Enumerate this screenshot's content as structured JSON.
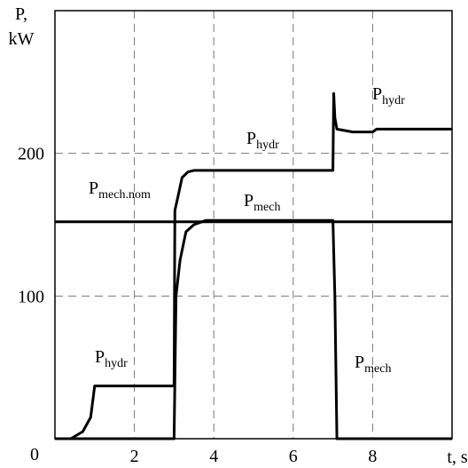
{
  "chart_data": {
    "type": "line",
    "ylabel": [
      "P,",
      "kW"
    ],
    "xlabel": "t, s",
    "xlim": [
      0,
      10
    ],
    "ylim": [
      0,
      300
    ],
    "xticks": [
      2,
      4,
      6,
      8
    ],
    "yticks": [
      0,
      100,
      200
    ],
    "grid": true,
    "series": [
      {
        "color": "#000000",
        "x": [
          0,
          0.4,
          0.7,
          0.9,
          1.0,
          3.0,
          3.02,
          3.1,
          3.2,
          3.35,
          3.5,
          7.0,
          7.02,
          7.05,
          7.1,
          7.5,
          8.0,
          8.1,
          10
        ],
        "values": [
          0,
          0,
          5,
          15,
          37,
          37,
          160,
          170,
          183,
          187,
          188,
          188,
          242,
          225,
          217,
          215,
          215,
          217,
          217
        ]
      },
      {
        "color": "#000000",
        "x": [
          0,
          3.0,
          3.05,
          3.15,
          3.3,
          3.5,
          3.8,
          7.0,
          7.05,
          7.1,
          10
        ],
        "values": [
          0,
          0,
          100,
          125,
          145,
          150,
          153,
          153,
          100,
          0,
          0
        ]
      },
      {
        "color": "#000000",
        "x": [
          0,
          10
        ],
        "values": [
          152,
          152
        ]
      }
    ],
    "annotations": [
      {
        "text": "P",
        "sub": "hydr"
      },
      {
        "text": "P",
        "sub": "hydr"
      },
      {
        "text": "P",
        "sub": "mech.nom"
      },
      {
        "text": "P",
        "sub": "mech"
      },
      {
        "text": "P",
        "sub": "hydr"
      },
      {
        "text": "P",
        "sub": "mech"
      }
    ]
  }
}
